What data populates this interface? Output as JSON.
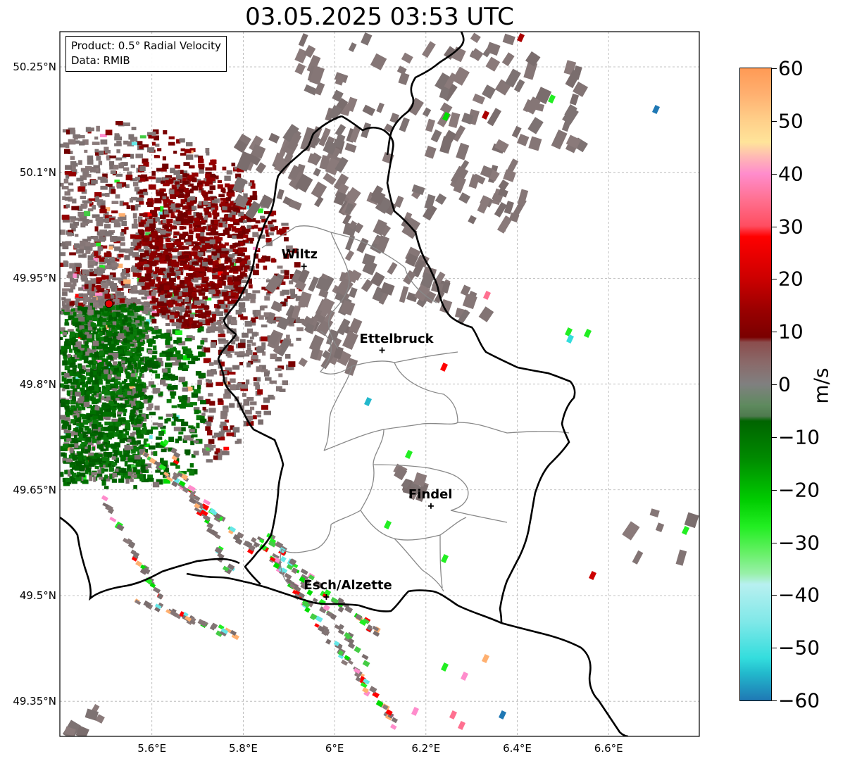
{
  "title": "03.05.2025 03:53 UTC",
  "info": {
    "product": "Product: 0.5° Radial Velocity",
    "data": "Data: RMIB"
  },
  "map": {
    "lon_range": [
      5.4,
      6.8
    ],
    "lat_range": [
      49.3,
      50.3
    ],
    "lat_ticks": [
      {
        "value": 50.25,
        "label": "50.25°N"
      },
      {
        "value": 50.1,
        "label": "50.1°N"
      },
      {
        "value": 49.95,
        "label": "49.95°N"
      },
      {
        "value": 49.8,
        "label": "49.8°N"
      },
      {
        "value": 49.65,
        "label": "49.65°N"
      },
      {
        "value": 49.5,
        "label": "49.5°N"
      },
      {
        "value": 49.35,
        "label": "49.35°N"
      }
    ],
    "lon_ticks": [
      {
        "value": 5.6,
        "label": "5.6°E"
      },
      {
        "value": 5.8,
        "label": "5.8°E"
      },
      {
        "value": 6.0,
        "label": "6°E"
      },
      {
        "value": 6.2,
        "label": "6.2°E"
      },
      {
        "value": 6.4,
        "label": "6.4°E"
      },
      {
        "value": 6.6,
        "label": "6.6°E"
      }
    ],
    "radar_site": {
      "lon": 5.506,
      "lat": 49.914,
      "color": "#e60000"
    },
    "cities": [
      {
        "name": "Wiltz",
        "lon": 5.933,
        "lat": 49.967
      },
      {
        "name": "Ettelbruck",
        "lon": 6.104,
        "lat": 49.848
      },
      {
        "name": "Findel",
        "lon": 6.211,
        "lat": 49.627
      },
      {
        "name": "Esch/Alzette",
        "lon": 5.982,
        "lat": 49.498
      }
    ]
  },
  "colorbar": {
    "label": "m/s",
    "min": -60,
    "max": 60,
    "ticks": [
      {
        "value": 60,
        "label": "60"
      },
      {
        "value": 50,
        "label": "50"
      },
      {
        "value": 40,
        "label": "40"
      },
      {
        "value": 30,
        "label": "30"
      },
      {
        "value": 20,
        "label": "20"
      },
      {
        "value": 10,
        "label": "10"
      },
      {
        "value": 0,
        "label": "0"
      },
      {
        "value": -10,
        "label": "−10"
      },
      {
        "value": -20,
        "label": "−20"
      },
      {
        "value": -30,
        "label": "−30"
      },
      {
        "value": -40,
        "label": "−40"
      },
      {
        "value": -50,
        "label": "−50"
      },
      {
        "value": -60,
        "label": "−60"
      }
    ],
    "stops": [
      {
        "value": 60,
        "color": "#ff9a55"
      },
      {
        "value": 55,
        "color": "#ffb070"
      },
      {
        "value": 50,
        "color": "#ffd08a"
      },
      {
        "value": 46,
        "color": "#ffe49a"
      },
      {
        "value": 43,
        "color": "#ffb6b6"
      },
      {
        "value": 40,
        "color": "#ff8ccc"
      },
      {
        "value": 35,
        "color": "#ff7090"
      },
      {
        "value": 30,
        "color": "#ff4d60"
      },
      {
        "value": 28,
        "color": "#ff0000"
      },
      {
        "value": 20,
        "color": "#cc0000"
      },
      {
        "value": 14,
        "color": "#990000"
      },
      {
        "value": 9,
        "color": "#7a0000"
      },
      {
        "value": 8,
        "color": "#8b4d4d"
      },
      {
        "value": 4,
        "color": "#8a6a6a"
      },
      {
        "value": 0,
        "color": "#808080"
      },
      {
        "value": -4,
        "color": "#5e8a5e"
      },
      {
        "value": -6,
        "color": "#4f7a4f"
      },
      {
        "value": -7,
        "color": "#006400"
      },
      {
        "value": -14,
        "color": "#008a00"
      },
      {
        "value": -22,
        "color": "#00cc00"
      },
      {
        "value": -27,
        "color": "#22ee22"
      },
      {
        "value": -32,
        "color": "#66f066"
      },
      {
        "value": -36,
        "color": "#99f0aa"
      },
      {
        "value": -38,
        "color": "#b8f0f0"
      },
      {
        "value": -45,
        "color": "#80e8e8"
      },
      {
        "value": -52,
        "color": "#33dddd"
      },
      {
        "value": -55,
        "color": "#22b8cc"
      },
      {
        "value": -60,
        "color": "#1f78b4"
      }
    ]
  }
}
